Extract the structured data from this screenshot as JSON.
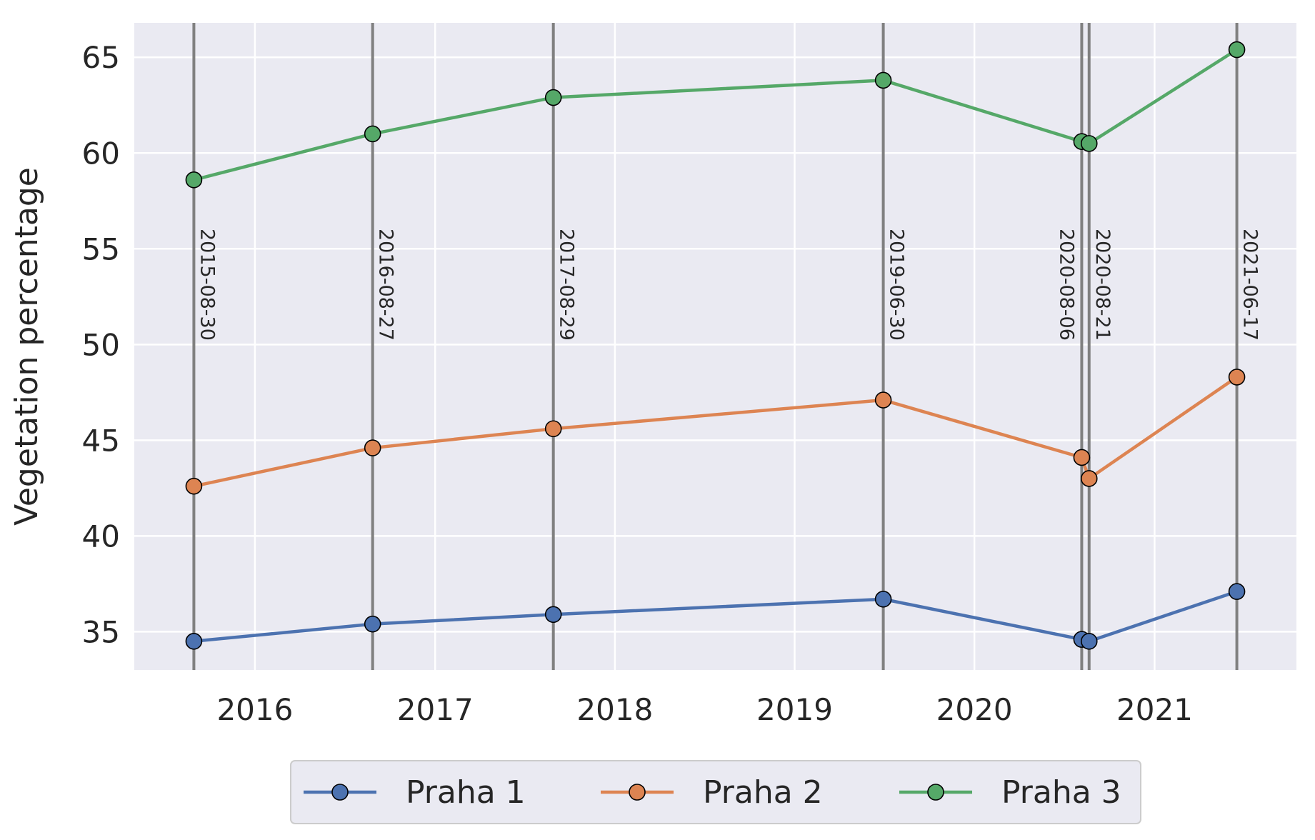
{
  "chart_data": {
    "type": "line",
    "title": "",
    "xlabel": "",
    "ylabel": "Vegetation percentage",
    "x_tick_labels": [
      "2016",
      "2017",
      "2018",
      "2019",
      "2020",
      "2021"
    ],
    "x_tick_dates": [
      "2016-01-01",
      "2017-01-01",
      "2018-01-01",
      "2019-01-01",
      "2020-01-01",
      "2021-01-01"
    ],
    "y_ticks": [
      35,
      40,
      45,
      50,
      55,
      60,
      65
    ],
    "xlim": [
      "2015-05-01",
      "2021-10-16"
    ],
    "ylim": [
      33,
      66.8
    ],
    "grid": true,
    "legend_position": "bottom-center",
    "background_color": "#EAEAF2",
    "grid_color": "#FFFFFF",
    "event_line_color": "#808080",
    "x": [
      "2015-08-30",
      "2016-08-27",
      "2017-08-29",
      "2019-06-30",
      "2020-08-06",
      "2020-08-21",
      "2021-06-17"
    ],
    "event_labels": [
      "2015-08-30",
      "2016-08-27",
      "2017-08-29",
      "2019-06-30",
      "2020-08-06",
      "2020-08-21",
      "2021-06-17"
    ],
    "series": [
      {
        "name": "Praha 1",
        "color": "#4C72B0",
        "values": [
          34.5,
          35.4,
          35.9,
          36.7,
          34.6,
          34.5,
          37.1
        ]
      },
      {
        "name": "Praha 2",
        "color": "#DD8452",
        "values": [
          42.6,
          44.6,
          45.6,
          47.1,
          44.1,
          43.0,
          48.3
        ]
      },
      {
        "name": "Praha 3",
        "color": "#55A868",
        "values": [
          58.6,
          61.0,
          62.9,
          63.8,
          60.6,
          60.5,
          65.4
        ]
      }
    ]
  }
}
